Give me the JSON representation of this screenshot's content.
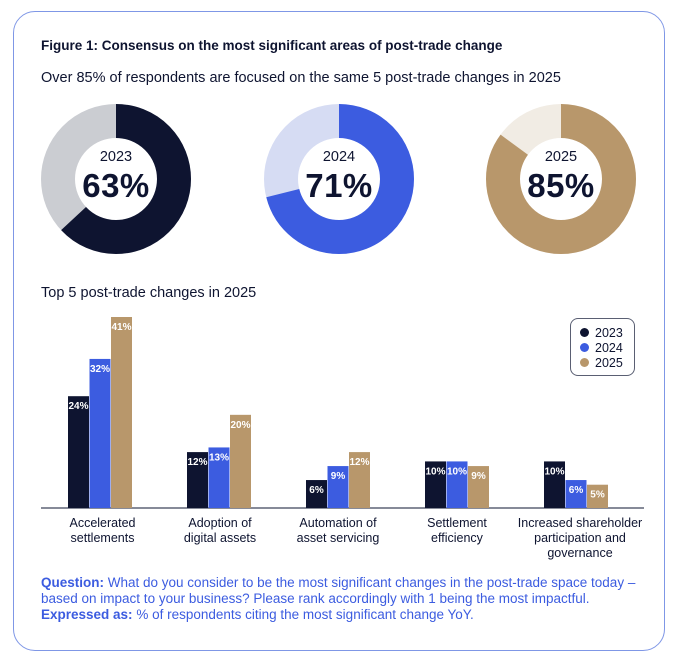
{
  "figure_title": "Figure 1: Consensus on the most significant areas of post-trade change",
  "subtitle": "Over 85% of respondents are focused on the same 5 post-trade changes in 2025",
  "donuts": [
    {
      "year": "2023",
      "label": "63%",
      "value": 63,
      "color": "#0e1430",
      "track": "#cbcdd2"
    },
    {
      "year": "2024",
      "label": "71%",
      "value": 71,
      "color": "#3c5ce0",
      "track": "#d6dcf3"
    },
    {
      "year": "2025",
      "label": "85%",
      "value": 85,
      "color": "#b8976b",
      "track": "#f1ece4"
    }
  ],
  "chart_data": {
    "type": "bar",
    "title": "Top 5 post-trade changes in 2025",
    "categories": [
      "Accelerated settlements",
      "Adoption of digital assets",
      "Automation of asset servicing",
      "Settlement efficiency",
      "Increased shareholder participation and governance"
    ],
    "category_lines": [
      [
        "Accelerated",
        "settlements"
      ],
      [
        "Adoption of",
        "digital assets"
      ],
      [
        "Automation of",
        "asset servicing"
      ],
      [
        "Settlement",
        "efficiency"
      ],
      [
        "Increased shareholder",
        "participation and",
        "governance"
      ]
    ],
    "series": [
      {
        "name": "2023",
        "values": [
          24,
          12,
          6,
          10,
          10
        ],
        "labels": [
          "24%",
          "12%",
          "6%",
          "10%",
          "10%"
        ],
        "color": "#0e1430"
      },
      {
        "name": "2024",
        "values": [
          32,
          13,
          9,
          10,
          6
        ],
        "labels": [
          "32%",
          "13%",
          "9%",
          "10%",
          "6%"
        ],
        "color": "#3c5ce0"
      },
      {
        "name": "2025",
        "values": [
          41,
          20,
          12,
          9,
          5
        ],
        "labels": [
          "41%",
          "20%",
          "12%",
          "9%",
          "5%"
        ],
        "color": "#b8976b"
      }
    ],
    "legend_position": "top-right",
    "ylim": [
      0,
      41
    ]
  },
  "footer": {
    "question_label": "Question:",
    "question_text": "What do you consider to be the most significant changes in the post-trade space today – based on impact to your business? Please rank accordingly with 1 being the most impactful.",
    "expressed_label": "Expressed as:",
    "expressed_text": "% of respondents citing the most significant change YoY."
  }
}
